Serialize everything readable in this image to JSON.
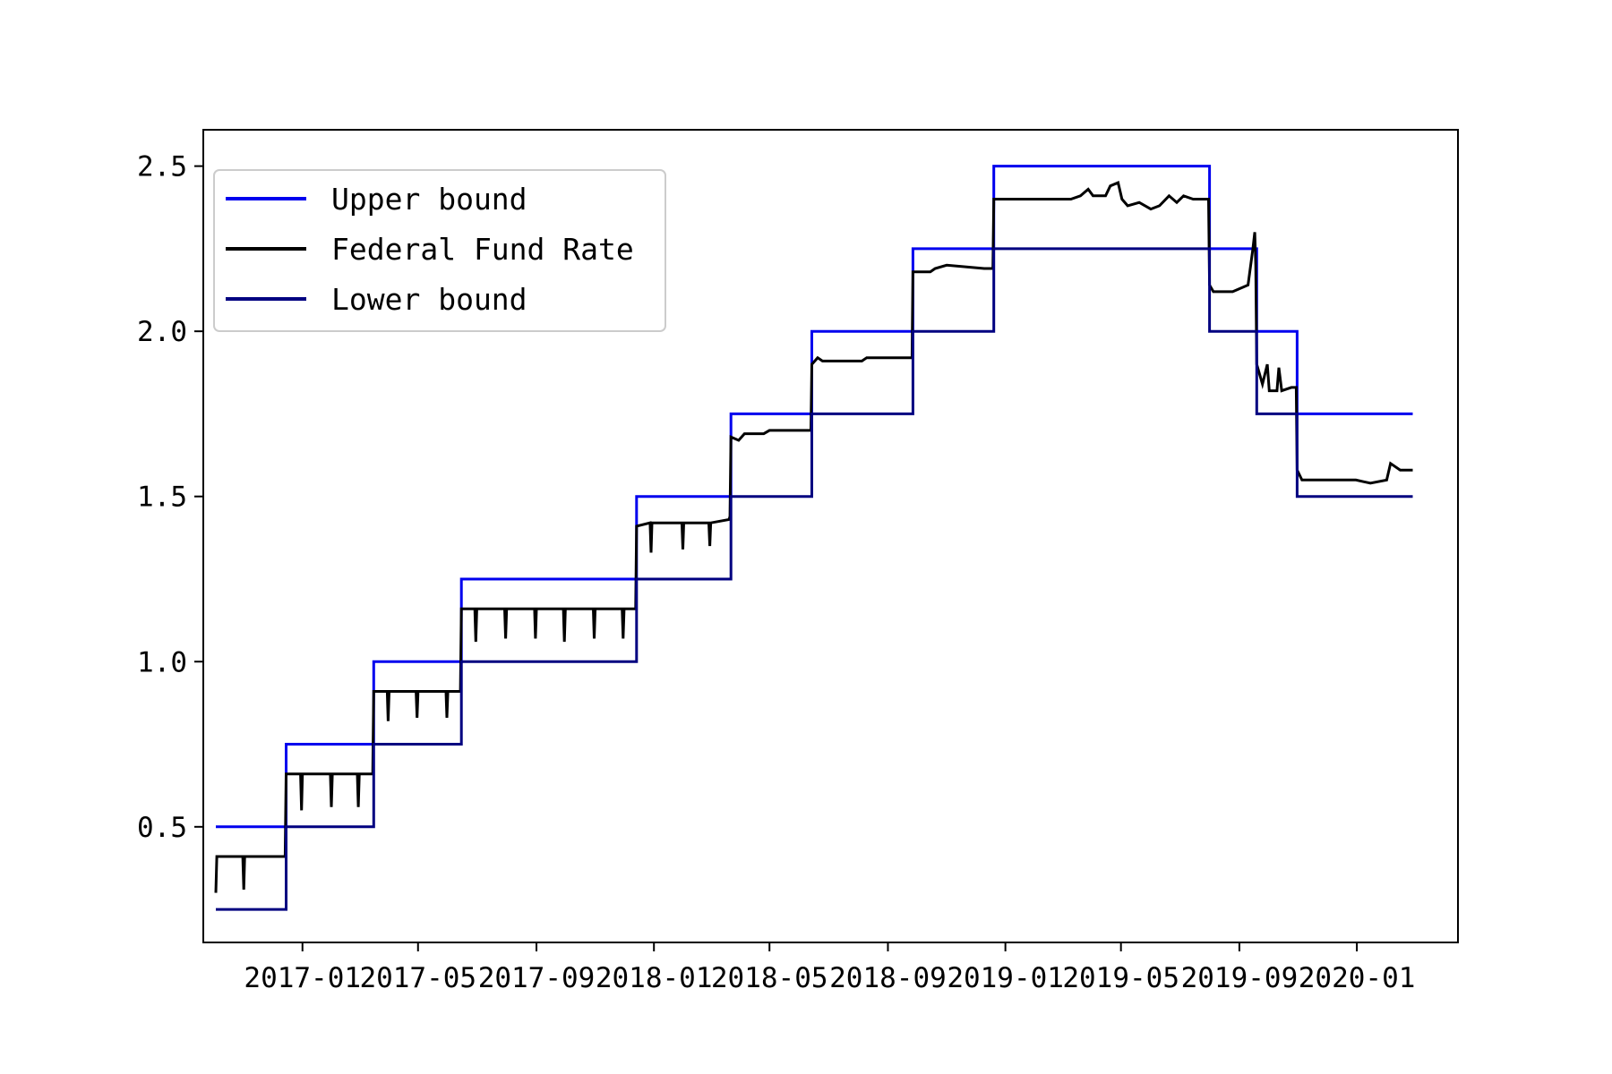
{
  "chart_data": {
    "type": "line",
    "title": "",
    "xlabel": "",
    "ylabel": "",
    "x_axis_type": "date",
    "xlim": [
      "2016-09-20",
      "2020-04-15"
    ],
    "ylim": [
      0.15,
      2.61
    ],
    "x_ticks": [
      "2017-01-01",
      "2017-05-01",
      "2017-09-01",
      "2018-01-01",
      "2018-05-01",
      "2018-09-01",
      "2019-01-01",
      "2019-05-01",
      "2019-09-01",
      "2020-01-01"
    ],
    "x_tick_labels": [
      "2017-01",
      "2017-05",
      "2017-09",
      "2018-01",
      "2018-05",
      "2018-09",
      "2019-01",
      "2019-05",
      "2019-09",
      "2020-01"
    ],
    "y_ticks": [
      0.5,
      1.0,
      1.5,
      2.0,
      2.5
    ],
    "y_tick_labels": [
      "0.5",
      "1.0",
      "1.5",
      "2.0",
      "2.5"
    ],
    "grid": false,
    "legend_position": "top-left",
    "series": [
      {
        "name": "Upper bound",
        "color": "#0000ee",
        "step": true,
        "points": [
          [
            "2016-10-03",
            0.5
          ],
          [
            "2016-12-15",
            0.75
          ],
          [
            "2017-03-16",
            1.0
          ],
          [
            "2017-06-15",
            1.25
          ],
          [
            "2017-12-14",
            1.5
          ],
          [
            "2018-03-22",
            1.75
          ],
          [
            "2018-06-14",
            2.0
          ],
          [
            "2018-09-27",
            2.25
          ],
          [
            "2018-12-20",
            2.5
          ],
          [
            "2019-08-01",
            2.25
          ],
          [
            "2019-09-19",
            2.0
          ],
          [
            "2019-10-31",
            1.75
          ],
          [
            "2020-02-28",
            1.75
          ]
        ]
      },
      {
        "name": "Federal Fund Rate",
        "color": "#000000",
        "step": false,
        "points": [
          [
            "2016-10-03",
            0.3
          ],
          [
            "2016-10-04",
            0.41
          ],
          [
            "2016-10-31",
            0.41
          ],
          [
            "2016-11-01",
            0.31
          ],
          [
            "2016-11-02",
            0.41
          ],
          [
            "2016-12-14",
            0.41
          ],
          [
            "2016-12-15",
            0.66
          ],
          [
            "2016-12-30",
            0.66
          ],
          [
            "2016-12-31",
            0.55
          ],
          [
            "2017-01-01",
            0.66
          ],
          [
            "2017-01-30",
            0.66
          ],
          [
            "2017-01-31",
            0.56
          ],
          [
            "2017-02-01",
            0.66
          ],
          [
            "2017-02-27",
            0.66
          ],
          [
            "2017-02-28",
            0.56
          ],
          [
            "2017-03-01",
            0.66
          ],
          [
            "2017-03-15",
            0.66
          ],
          [
            "2017-03-16",
            0.91
          ],
          [
            "2017-03-30",
            0.91
          ],
          [
            "2017-03-31",
            0.82
          ],
          [
            "2017-04-01",
            0.91
          ],
          [
            "2017-04-29",
            0.91
          ],
          [
            "2017-04-30",
            0.83
          ],
          [
            "2017-05-01",
            0.91
          ],
          [
            "2017-05-30",
            0.91
          ],
          [
            "2017-05-31",
            0.83
          ],
          [
            "2017-06-01",
            0.91
          ],
          [
            "2017-06-14",
            0.91
          ],
          [
            "2017-06-15",
            1.16
          ],
          [
            "2017-06-29",
            1.16
          ],
          [
            "2017-06-30",
            1.06
          ],
          [
            "2017-07-01",
            1.16
          ],
          [
            "2017-07-30",
            1.16
          ],
          [
            "2017-07-31",
            1.07
          ],
          [
            "2017-08-01",
            1.16
          ],
          [
            "2017-08-30",
            1.16
          ],
          [
            "2017-08-31",
            1.07
          ],
          [
            "2017-09-01",
            1.16
          ],
          [
            "2017-09-29",
            1.16
          ],
          [
            "2017-09-30",
            1.06
          ],
          [
            "2017-10-01",
            1.16
          ],
          [
            "2017-10-30",
            1.16
          ],
          [
            "2017-10-31",
            1.07
          ],
          [
            "2017-11-01",
            1.16
          ],
          [
            "2017-11-29",
            1.16
          ],
          [
            "2017-11-30",
            1.07
          ],
          [
            "2017-12-01",
            1.16
          ],
          [
            "2017-12-13",
            1.16
          ],
          [
            "2017-12-14",
            1.41
          ],
          [
            "2017-12-28",
            1.42
          ],
          [
            "2017-12-29",
            1.33
          ],
          [
            "2017-12-30",
            1.42
          ],
          [
            "2018-01-30",
            1.42
          ],
          [
            "2018-01-31",
            1.34
          ],
          [
            "2018-02-01",
            1.42
          ],
          [
            "2018-02-27",
            1.42
          ],
          [
            "2018-02-28",
            1.35
          ],
          [
            "2018-03-01",
            1.42
          ],
          [
            "2018-03-20",
            1.43
          ],
          [
            "2018-03-21",
            1.44
          ],
          [
            "2018-03-22",
            1.68
          ],
          [
            "2018-03-30",
            1.67
          ],
          [
            "2018-04-05",
            1.69
          ],
          [
            "2018-04-25",
            1.69
          ],
          [
            "2018-05-01",
            1.7
          ],
          [
            "2018-06-13",
            1.7
          ],
          [
            "2018-06-14",
            1.9
          ],
          [
            "2018-06-20",
            1.92
          ],
          [
            "2018-06-25",
            1.91
          ],
          [
            "2018-08-05",
            1.91
          ],
          [
            "2018-08-10",
            1.92
          ],
          [
            "2018-09-26",
            1.92
          ],
          [
            "2018-09-27",
            2.18
          ],
          [
            "2018-10-15",
            2.18
          ],
          [
            "2018-10-20",
            2.19
          ],
          [
            "2018-11-01",
            2.2
          ],
          [
            "2018-12-10",
            2.19
          ],
          [
            "2018-12-19",
            2.19
          ],
          [
            "2018-12-20",
            2.4
          ],
          [
            "2019-03-10",
            2.4
          ],
          [
            "2019-03-20",
            2.41
          ],
          [
            "2019-03-28",
            2.43
          ],
          [
            "2019-04-02",
            2.41
          ],
          [
            "2019-04-15",
            2.41
          ],
          [
            "2019-04-20",
            2.44
          ],
          [
            "2019-04-28",
            2.45
          ],
          [
            "2019-05-02",
            2.4
          ],
          [
            "2019-05-08",
            2.38
          ],
          [
            "2019-05-20",
            2.39
          ],
          [
            "2019-06-01",
            2.37
          ],
          [
            "2019-06-10",
            2.38
          ],
          [
            "2019-06-20",
            2.41
          ],
          [
            "2019-06-28",
            2.39
          ],
          [
            "2019-07-05",
            2.41
          ],
          [
            "2019-07-15",
            2.4
          ],
          [
            "2019-07-31",
            2.4
          ],
          [
            "2019-08-01",
            2.14
          ],
          [
            "2019-08-05",
            2.12
          ],
          [
            "2019-08-25",
            2.12
          ],
          [
            "2019-09-10",
            2.14
          ],
          [
            "2019-09-15",
            2.25
          ],
          [
            "2019-09-17",
            2.3
          ],
          [
            "2019-09-18",
            2.2
          ],
          [
            "2019-09-19",
            1.9
          ],
          [
            "2019-09-25",
            1.84
          ],
          [
            "2019-09-30",
            1.9
          ],
          [
            "2019-10-02",
            1.82
          ],
          [
            "2019-10-10",
            1.82
          ],
          [
            "2019-10-12",
            1.89
          ],
          [
            "2019-10-15",
            1.82
          ],
          [
            "2019-10-25",
            1.83
          ],
          [
            "2019-10-30",
            1.83
          ],
          [
            "2019-10-31",
            1.58
          ],
          [
            "2019-11-05",
            1.55
          ],
          [
            "2019-12-31",
            1.55
          ],
          [
            "2020-01-15",
            1.54
          ],
          [
            "2020-02-01",
            1.55
          ],
          [
            "2020-02-05",
            1.6
          ],
          [
            "2020-02-15",
            1.58
          ],
          [
            "2020-02-28",
            1.58
          ]
        ]
      },
      {
        "name": "Lower bound",
        "color": "#000080",
        "step": true,
        "points": [
          [
            "2016-10-03",
            0.25
          ],
          [
            "2016-12-15",
            0.5
          ],
          [
            "2017-03-16",
            0.75
          ],
          [
            "2017-06-15",
            1.0
          ],
          [
            "2017-12-14",
            1.25
          ],
          [
            "2018-03-22",
            1.5
          ],
          [
            "2018-06-14",
            1.75
          ],
          [
            "2018-09-27",
            2.0
          ],
          [
            "2018-12-20",
            2.25
          ],
          [
            "2019-08-01",
            2.0
          ],
          [
            "2019-09-19",
            1.75
          ],
          [
            "2019-10-31",
            1.5
          ],
          [
            "2020-02-28",
            1.5
          ]
        ]
      }
    ]
  }
}
